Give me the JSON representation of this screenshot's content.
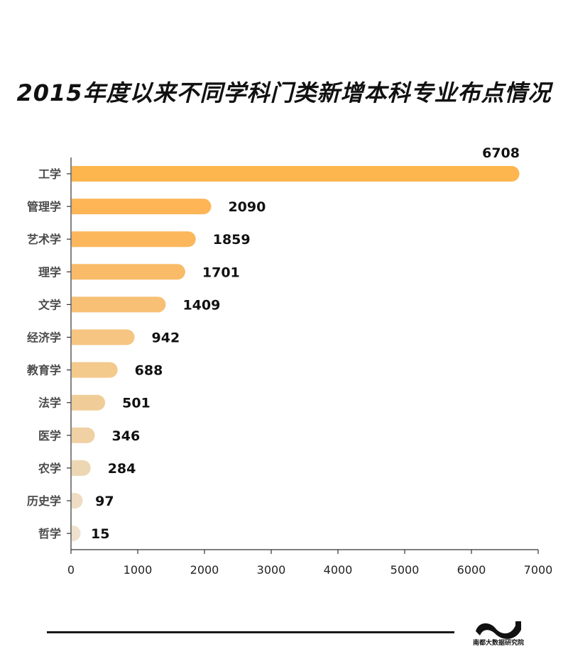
{
  "chart_data": {
    "type": "bar",
    "orientation": "horizontal",
    "title": "2015年度以来不同学科门类新增本科专业布点情况",
    "categories": [
      "工学",
      "管理学",
      "艺术学",
      "理学",
      "文学",
      "经济学",
      "教育学",
      "法学",
      "医学",
      "农学",
      "历史学",
      "哲学"
    ],
    "values": [
      6708,
      2090,
      1859,
      1701,
      1409,
      942,
      688,
      501,
      346,
      284,
      97,
      15
    ],
    "colors": [
      "#FDB54E",
      "#FDB556",
      "#FCB75C",
      "#F9BB68",
      "#F7C074",
      "#F5C581",
      "#F3C98C",
      "#F0CD98",
      "#EFD1A4",
      "#EDD6B2",
      "#EEDCC3",
      "#EFE1CE"
    ],
    "xlim": [
      0,
      7000
    ],
    "xticks": [
      0,
      1000,
      2000,
      3000,
      4000,
      5000,
      6000,
      7000
    ],
    "grid": false,
    "legend": "none",
    "data_labels": true
  },
  "footer": {
    "logo_text": "南都大数据研究院"
  }
}
